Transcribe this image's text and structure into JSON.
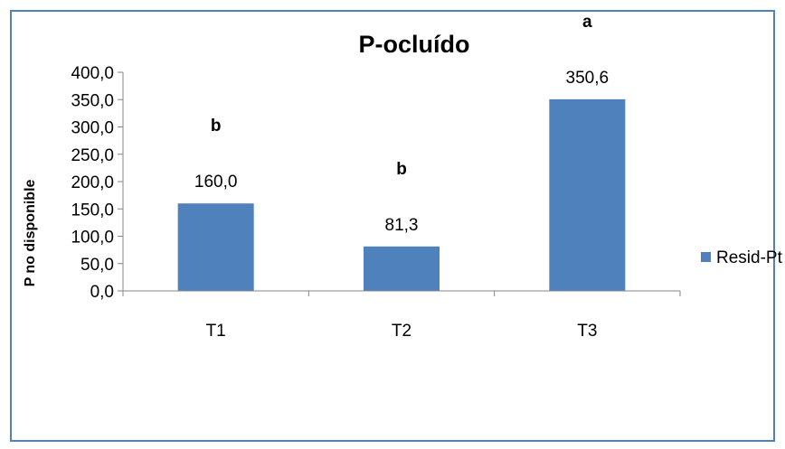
{
  "chart_data": {
    "type": "bar",
    "title": "P-ocluído",
    "xlabel": "",
    "ylabel": "P no disponible",
    "categories": [
      "T1",
      "T2",
      "T3"
    ],
    "series": [
      {
        "name": "Resid-Pt",
        "values": [
          160.0,
          81.3,
          350.6
        ],
        "value_labels": [
          "160,0",
          "81,3",
          "350,6"
        ],
        "significance_letters": [
          "b",
          "b",
          "a"
        ],
        "color": "#4F81BD"
      }
    ],
    "ylim": [
      0,
      400
    ],
    "yticks": [
      0,
      50,
      100,
      150,
      200,
      250,
      300,
      350,
      400
    ],
    "ytick_labels": [
      "0,0",
      "50,0",
      "100,0",
      "150,0",
      "200,0",
      "250,0",
      "300,0",
      "350,0",
      "400,0"
    ],
    "grid": false,
    "legend_position": "right",
    "border_color": "#4F81BD"
  }
}
